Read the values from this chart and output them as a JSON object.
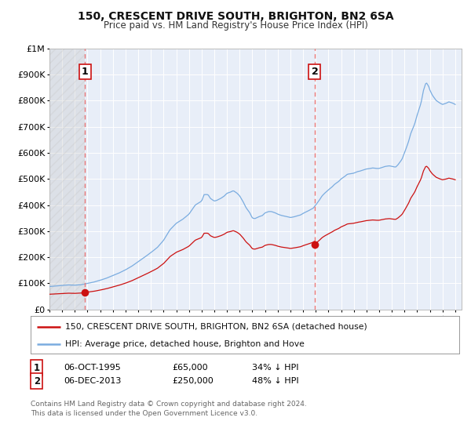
{
  "title": "150, CRESCENT DRIVE SOUTH, BRIGHTON, BN2 6SA",
  "subtitle": "Price paid vs. HM Land Registry's House Price Index (HPI)",
  "ylim": [
    0,
    1000000
  ],
  "yticks": [
    0,
    100000,
    200000,
    300000,
    400000,
    500000,
    600000,
    700000,
    800000,
    900000,
    1000000
  ],
  "ytick_labels": [
    "£0",
    "£100K",
    "£200K",
    "£300K",
    "£400K",
    "£500K",
    "£600K",
    "£700K",
    "£800K",
    "£900K",
    "£1M"
  ],
  "hpi_color": "#7aace0",
  "price_color": "#cc1111",
  "dashed_line_color": "#e87777",
  "marker1_x": 1995.79,
  "marker1_y": 65000,
  "marker2_x": 2013.92,
  "marker2_y": 250000,
  "legend_label1": "150, CRESCENT DRIVE SOUTH, BRIGHTON, BN2 6SA (detached house)",
  "legend_label2": "HPI: Average price, detached house, Brighton and Hove",
  "footer": "Contains HM Land Registry data © Crown copyright and database right 2024.\nThis data is licensed under the Open Government Licence v3.0.",
  "background_color": "#ffffff",
  "plot_bg_color": "#e8eef8",
  "grid_color": "#ffffff",
  "xlim_start": 1993.0,
  "xlim_end": 2025.5
}
